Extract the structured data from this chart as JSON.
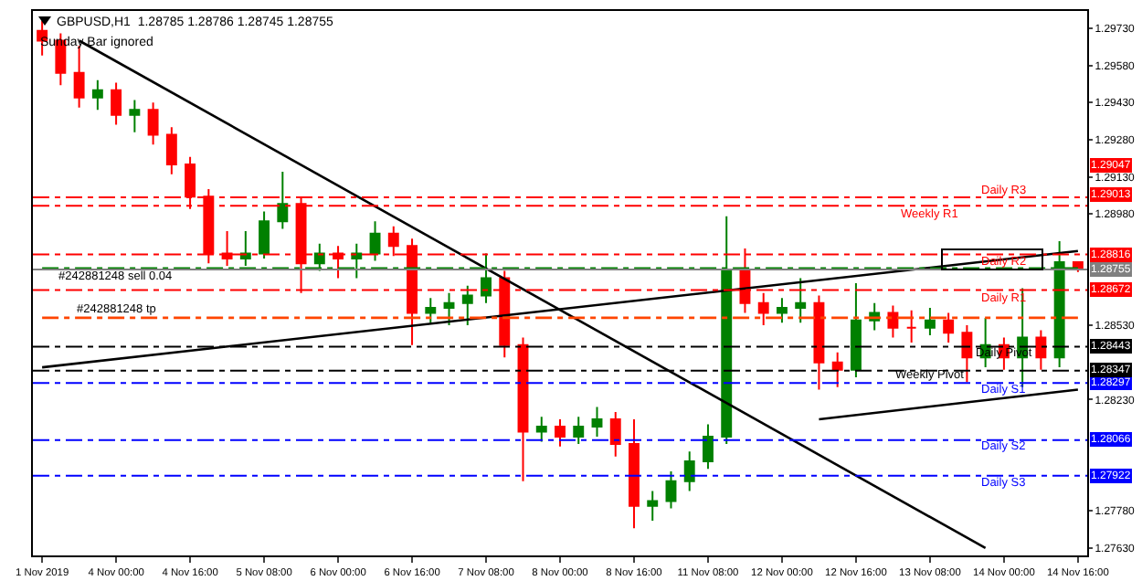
{
  "chart_data": {
    "type": "candlestick",
    "title": "GBPUSD,H1  1.28785 1.28786 1.28745 1.28755",
    "subtitle": "Sunday Bar ignored",
    "categories": [
      "1 Nov 2019",
      null,
      null,
      null,
      "4 Nov 00:00",
      null,
      null,
      null,
      "4 Nov 16:00",
      null,
      null,
      null,
      "5 Nov 08:00",
      null,
      null,
      null,
      "6 Nov 00:00",
      null,
      null,
      null,
      "6 Nov 16:00",
      null,
      null,
      null,
      "7 Nov 08:00",
      null,
      null,
      null,
      "8 Nov 00:00",
      null,
      null,
      null,
      "8 Nov 16:00",
      null,
      null,
      null,
      "11 Nov 08:00",
      null,
      null,
      null,
      "12 Nov 00:00",
      null,
      null,
      null,
      "12 Nov 16:00",
      null,
      null,
      null,
      "13 Nov 08:00",
      null,
      null,
      null,
      "14 Nov 00:00",
      null,
      null,
      null,
      "14 Nov 16:00"
    ],
    "ohlc": [
      [
        1.2972,
        1.2976,
        1.2962,
        1.2968
      ],
      [
        1.2968,
        1.2971,
        1.295,
        1.2955
      ],
      [
        1.2955,
        1.2966,
        1.2941,
        1.2945
      ],
      [
        1.2945,
        1.2952,
        1.294,
        1.2948
      ],
      [
        1.2948,
        1.2951,
        1.2934,
        1.2938
      ],
      [
        1.2938,
        1.2944,
        1.2931,
        1.294
      ],
      [
        1.294,
        1.2943,
        1.2926,
        1.293
      ],
      [
        1.293,
        1.2933,
        1.2914,
        1.2918
      ],
      [
        1.2918,
        1.2921,
        1.29,
        1.2905
      ],
      [
        1.2905,
        1.2908,
        1.2878,
        1.2882
      ],
      [
        1.2882,
        1.2891,
        1.2877,
        1.288
      ],
      [
        1.288,
        1.2891,
        1.2877,
        1.2882
      ],
      [
        1.2882,
        1.2899,
        1.288,
        1.2895
      ],
      [
        1.2895,
        1.2915,
        1.2892,
        1.2902
      ],
      [
        1.2902,
        1.2905,
        1.2866,
        1.2878
      ],
      [
        1.2878,
        1.2886,
        1.2875,
        1.2882
      ],
      [
        1.2882,
        1.2885,
        1.2872,
        1.288
      ],
      [
        1.288,
        1.2886,
        1.2872,
        1.2882
      ],
      [
        1.2882,
        1.2895,
        1.2879,
        1.289
      ],
      [
        1.289,
        1.2893,
        1.2881,
        1.2885
      ],
      [
        1.2885,
        1.2888,
        1.2845,
        1.2858
      ],
      [
        1.2858,
        1.2864,
        1.2854,
        1.286
      ],
      [
        1.286,
        1.2866,
        1.2853,
        1.2862
      ],
      [
        1.2862,
        1.2869,
        1.2853,
        1.2865
      ],
      [
        1.2865,
        1.2882,
        1.2862,
        1.2872
      ],
      [
        1.2872,
        1.2875,
        1.284,
        1.2845
      ],
      [
        1.2845,
        1.2848,
        1.279,
        1.281
      ],
      [
        1.281,
        1.2816,
        1.2806,
        1.2812
      ],
      [
        1.2812,
        1.2815,
        1.2804,
        1.2808
      ],
      [
        1.2808,
        1.2816,
        1.2805,
        1.2812
      ],
      [
        1.2812,
        1.282,
        1.2808,
        1.2815
      ],
      [
        1.2815,
        1.2818,
        1.28,
        1.2805
      ],
      [
        1.2805,
        1.2815,
        1.2771,
        1.278
      ],
      [
        1.278,
        1.2786,
        1.2774,
        1.2782
      ],
      [
        1.2782,
        1.2794,
        1.2779,
        1.279
      ],
      [
        1.279,
        1.2802,
        1.2786,
        1.2798
      ],
      [
        1.2798,
        1.2813,
        1.2795,
        1.2808
      ],
      [
        1.2808,
        1.2897,
        1.2805,
        1.2875
      ],
      [
        1.2875,
        1.2884,
        1.2858,
        1.2862
      ],
      [
        1.2862,
        1.2866,
        1.2853,
        1.2858
      ],
      [
        1.2858,
        1.2864,
        1.2854,
        1.286
      ],
      [
        1.286,
        1.2872,
        1.2854,
        1.2862
      ],
      [
        1.2862,
        1.2865,
        1.2827,
        1.2838
      ],
      [
        1.2838,
        1.2842,
        1.2828,
        1.2835
      ],
      [
        1.2835,
        1.287,
        1.2832,
        1.2855
      ],
      [
        1.2855,
        1.2862,
        1.2851,
        1.2858
      ],
      [
        1.2858,
        1.2861,
        1.2848,
        1.2852
      ],
      [
        1.2852,
        1.2859,
        1.2846,
        1.2852
      ],
      [
        1.2852,
        1.286,
        1.2849,
        1.2855
      ],
      [
        1.2855,
        1.2858,
        1.2846,
        1.285
      ],
      [
        1.285,
        1.2853,
        1.283,
        1.284
      ],
      [
        1.284,
        1.2856,
        1.2836,
        1.2845
      ],
      [
        1.2845,
        1.2848,
        1.2835,
        1.284
      ],
      [
        1.284,
        1.2868,
        1.2828,
        1.2848
      ],
      [
        1.2848,
        1.2851,
        1.2835,
        1.284
      ],
      [
        1.284,
        1.2887,
        1.2836,
        1.28785
      ],
      [
        1.28785,
        1.28786,
        1.28745,
        1.28755
      ]
    ],
    "colors": [
      "#ff0000",
      "#ff0000",
      "#ff0000",
      "#008000",
      "#ff0000",
      "#008000",
      "#ff0000",
      "#ff0000",
      "#ff0000",
      "#ff0000",
      "#ff0000",
      "#008000",
      "#008000",
      "#008000",
      "#ff0000",
      "#008000",
      "#ff0000",
      "#008000",
      "#008000",
      "#ff0000",
      "#ff0000",
      "#008000",
      "#008000",
      "#008000",
      "#008000",
      "#ff0000",
      "#ff0000",
      "#008000",
      "#ff0000",
      "#008000",
      "#008000",
      "#ff0000",
      "#ff0000",
      "#008000",
      "#008000",
      "#008000",
      "#008000",
      "#008000",
      "#ff0000",
      "#ff0000",
      "#008000",
      "#008000",
      "#ff0000",
      "#ff0000",
      "#008000",
      "#008000",
      "#ff0000",
      "#ff0000",
      "#008000",
      "#ff0000",
      "#ff0000",
      "#008000",
      "#ff0000",
      "#008000",
      "#ff0000",
      "#008000",
      "#ff0000"
    ],
    "series": [
      {
        "type": "line",
        "color": "#000000",
        "values": [
          null,
          null,
          1.2968,
          null,
          null,
          null,
          null,
          null,
          null,
          null,
          null,
          null,
          null,
          null,
          null,
          null,
          null,
          null,
          null,
          null,
          null,
          null,
          null,
          null,
          null,
          null,
          null,
          null,
          null,
          null,
          null,
          null,
          null,
          null,
          null,
          null,
          null,
          null,
          null,
          null,
          null,
          null,
          null,
          null,
          null,
          null,
          null,
          null,
          null,
          null,
          null,
          1.2763,
          null,
          null,
          null,
          null,
          null
        ]
      },
      {
        "type": "line",
        "color": "#000000",
        "values": [
          1.2836,
          null,
          null,
          null,
          null,
          null,
          null,
          null,
          null,
          null,
          null,
          null,
          null,
          null,
          null,
          null,
          null,
          null,
          null,
          null,
          null,
          null,
          null,
          null,
          null,
          null,
          null,
          null,
          null,
          null,
          null,
          null,
          null,
          null,
          null,
          null,
          null,
          null,
          null,
          null,
          null,
          null,
          null,
          null,
          null,
          null,
          null,
          null,
          null,
          null,
          null,
          null,
          null,
          null,
          null,
          null,
          1.2883
        ]
      },
      {
        "type": "line",
        "color": "#000000",
        "values": [
          null,
          null,
          null,
          null,
          null,
          null,
          null,
          null,
          null,
          null,
          null,
          null,
          null,
          null,
          null,
          null,
          null,
          null,
          null,
          null,
          null,
          null,
          null,
          null,
          null,
          null,
          null,
          null,
          null,
          null,
          null,
          null,
          null,
          null,
          null,
          null,
          null,
          null,
          null,
          null,
          null,
          null,
          1.2815,
          null,
          null,
          null,
          null,
          null,
          null,
          null,
          null,
          null,
          null,
          null,
          null,
          null,
          1.2827
        ]
      },
      {
        "type": "line",
        "color": "#008000",
        "line_style": "dashed",
        "values": [
          1.2876,
          1.2876,
          1.2876,
          1.2876,
          1.2876,
          1.2876,
          1.2876,
          1.2876,
          1.2876,
          1.2876,
          1.2876,
          1.2876,
          1.2876,
          1.2876,
          1.2876,
          1.2876,
          1.2876,
          1.2876,
          1.2876,
          1.2876,
          1.2876,
          1.2876,
          1.2876,
          1.2876,
          1.2876,
          1.2876,
          1.2876,
          1.2876,
          1.2876,
          1.2876,
          1.2876,
          1.2876,
          1.2876,
          1.2876,
          1.2876,
          1.2876,
          1.2876,
          1.2876,
          1.2876,
          1.2876,
          1.2876,
          1.2876,
          1.2876,
          1.2876,
          1.2876,
          1.2876,
          1.2876,
          1.2876,
          1.2876,
          1.2876,
          1.2876,
          1.2876,
          1.2876,
          1.2876,
          1.2876,
          1.2876,
          1.2876
        ]
      },
      {
        "type": "line",
        "color": "#ff4500",
        "line_style": "dashed",
        "values": [
          1.2856,
          1.2856,
          1.2856,
          1.2856,
          1.2856,
          1.2856,
          1.2856,
          1.2856,
          1.2856,
          1.2856,
          1.2856,
          1.2856,
          1.2856,
          1.2856,
          1.2856,
          1.2856,
          1.2856,
          1.2856,
          1.2856,
          1.2856,
          1.2856,
          1.2856,
          1.2856,
          1.2856,
          1.2856,
          1.2856,
          1.2856,
          1.2856,
          1.2856,
          1.2856,
          1.2856,
          1.2856,
          1.2856,
          1.2856,
          1.2856,
          1.2856,
          1.2856,
          1.2856,
          1.2856,
          1.2856,
          1.2856,
          1.2856,
          1.2856,
          1.2856,
          1.2856,
          1.2856,
          1.2856,
          1.2856,
          1.2856,
          1.2856,
          1.2856,
          1.2856,
          1.2856,
          1.2856,
          1.2856,
          1.2856,
          1.2856
        ]
      }
    ],
    "ref_lines": [
      {
        "axis": "y",
        "value": 1.29047,
        "label": "1.29047",
        "color": "#ff0000",
        "line_style": "dashed"
      },
      {
        "axis": "y",
        "value": 1.29013,
        "label": "1.29013",
        "color": "#ff0000",
        "line_style": "dashed"
      },
      {
        "axis": "y",
        "value": 1.28816,
        "label": "1.28816",
        "color": "#ff0000",
        "line_style": "dashed"
      },
      {
        "axis": "y",
        "value": 1.28755,
        "label": "1.28755",
        "color": "#808080",
        "line_style": "solid"
      },
      {
        "axis": "y",
        "value": 1.28672,
        "label": "1.28672",
        "color": "#ff0000",
        "line_style": "dashed"
      },
      {
        "axis": "y",
        "value": 1.28443,
        "label": "1.28443",
        "color": "#000000",
        "line_style": "dashed"
      },
      {
        "axis": "y",
        "value": 1.28347,
        "label": "1.28347",
        "color": "#000000",
        "line_style": "dashed"
      },
      {
        "axis": "y",
        "value": 1.28297,
        "label": "1.28297",
        "color": "#0000ff",
        "line_style": "dashed"
      },
      {
        "axis": "y",
        "value": 1.28066,
        "label": "1.28066",
        "color": "#0000ff",
        "line_style": "dashed"
      },
      {
        "axis": "y",
        "value": 1.27922,
        "label": "1.27922",
        "color": "#0000ff",
        "line_style": "dashed"
      }
    ],
    "annotations": [
      {
        "text": "#242881248 sell 0.04",
        "x": "4 Nov 00:00",
        "y": 1.28725
      },
      {
        "text": "#242881248 tp",
        "x": "4 Nov 00:00",
        "y": 1.2859
      },
      {
        "text": "Daily R3",
        "x": "14 Nov 00:00",
        "y": 1.29075
      },
      {
        "text": "Weekly R1",
        "x": "13 Nov 08:00",
        "y": 1.2898
      },
      {
        "text": "Daily R2",
        "x": "14 Nov 00:00",
        "y": 1.28785
      },
      {
        "text": "Daily R1",
        "x": "14 Nov 00:00",
        "y": 1.2864
      },
      {
        "text": "Daily Pivot",
        "x": "14 Nov 00:00",
        "y": 1.28415
      },
      {
        "text": "Weekly Pivot",
        "x": "13 Nov 08:00",
        "y": 1.28325
      },
      {
        "text": "Daily S1",
        "x": "14 Nov 00:00",
        "y": 1.2827
      },
      {
        "text": "Daily S2",
        "x": "14 Nov 00:00",
        "y": 1.2804
      },
      {
        "text": "Daily S3",
        "x": "14 Nov 00:00",
        "y": 1.2789
      }
    ],
    "ylim": [
      1.276,
      1.298
    ],
    "yticks": [
      {
        "value": 1.2973,
        "label": "1.29730"
      },
      {
        "value": 1.2958,
        "label": "1.29580"
      },
      {
        "value": 1.2943,
        "label": "1.29430"
      },
      {
        "value": 1.2928,
        "label": "1.29280"
      },
      {
        "value": 1.2913,
        "label": "1.29130"
      },
      {
        "value": 1.2898,
        "label": "1.28980"
      },
      {
        "value": 1.2853,
        "label": "1.28530"
      },
      {
        "value": 1.2823,
        "label": "1.28230"
      },
      {
        "value": 1.2778,
        "label": "1.27780"
      },
      {
        "value": 1.2763,
        "label": "1.27630"
      }
    ]
  }
}
